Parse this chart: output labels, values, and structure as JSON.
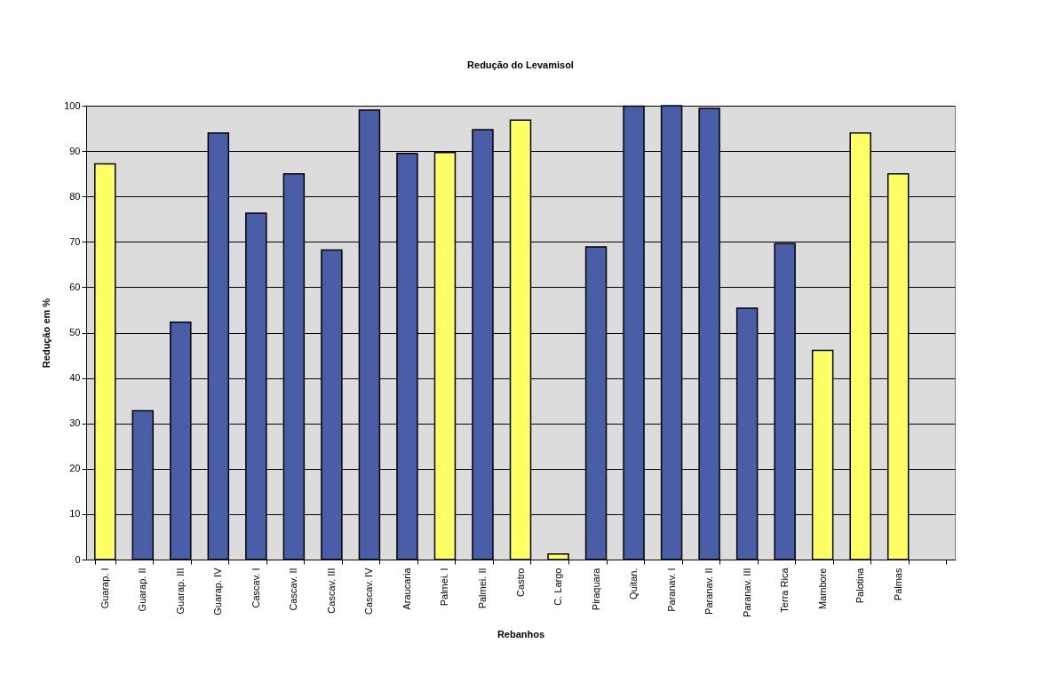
{
  "chart_data": {
    "type": "bar",
    "title": "Redução do Levamisol",
    "xlabel": "Rebanhos",
    "ylabel": "Redução em %",
    "categories": [
      "Guarap. I",
      "Guarap. II",
      "Guarap. III",
      "Guarap. IV",
      "Cascav. I",
      "Cascav. II",
      "Cascav. III",
      "Cascav. IV",
      "Araucaria",
      "Palmei. I",
      "Palmei. II",
      "Castro",
      "C. Largo",
      "Piraquara",
      "Quitan.",
      "Paranav. I",
      "Paranav. II",
      "Paranav. III",
      "Terra Rica",
      "Mambore",
      "Palotina",
      "Palmas",
      null
    ],
    "values": [
      87.2,
      32.8,
      52.3,
      94,
      76.3,
      85,
      68.2,
      99,
      89.5,
      89.7,
      94.7,
      96.8,
      1.2,
      68.9,
      99.9,
      100,
      99.4,
      55.4,
      69.6,
      46.1,
      94,
      85,
      null
    ],
    "colors": [
      "#ffff66",
      "#4a5ea8",
      "#4a5ea8",
      "#4a5ea8",
      "#4a5ea8",
      "#4a5ea8",
      "#4a5ea8",
      "#4a5ea8",
      "#4a5ea8",
      "#ffff66",
      "#4a5ea8",
      "#ffff66",
      "#ffff66",
      "#4a5ea8",
      "#4a5ea8",
      "#4a5ea8",
      "#4a5ea8",
      "#4a5ea8",
      "#4a5ea8",
      "#ffff66",
      "#ffff66",
      "#ffff66",
      "#4a5ea8"
    ],
    "ylim": [
      0,
      100
    ],
    "yticks": [
      0,
      10,
      20,
      30,
      40,
      50,
      60,
      70,
      80,
      90,
      100
    ],
    "grid": "y"
  }
}
